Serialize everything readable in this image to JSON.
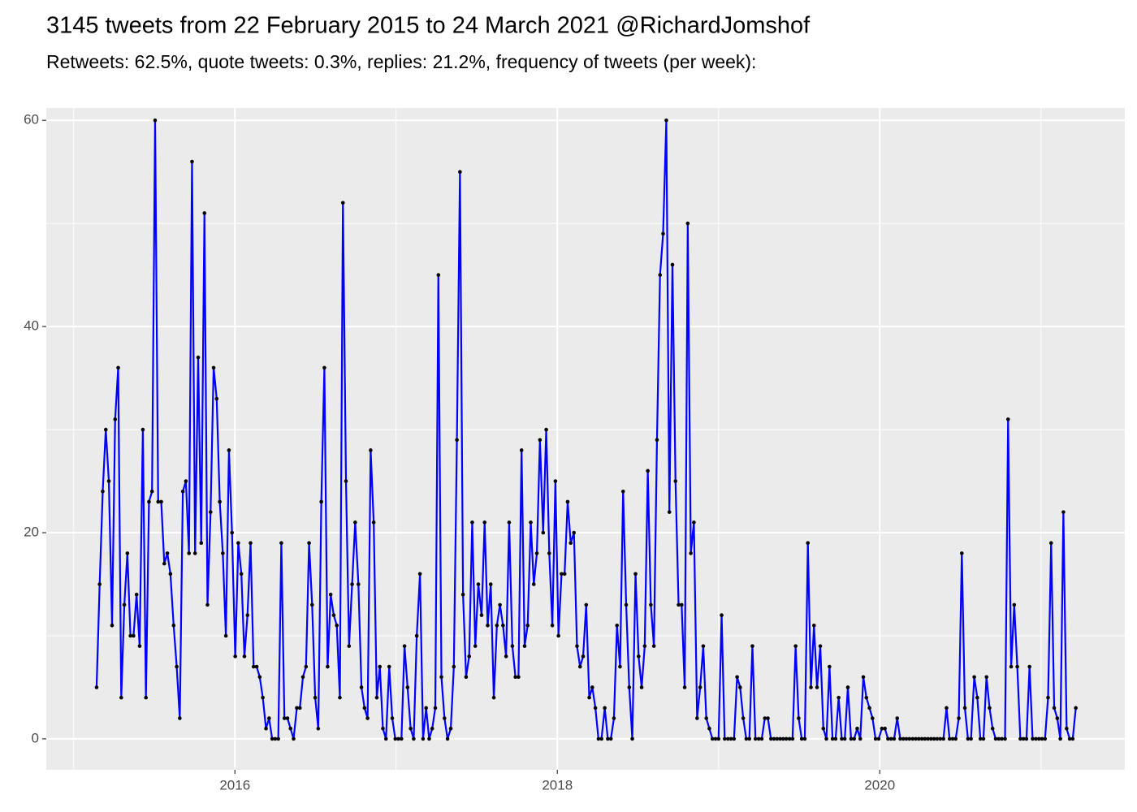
{
  "chart_data": {
    "type": "line",
    "title": "3145 tweets from 22 February 2015 to 24 March 2021 @RichardJomshof",
    "subtitle": "Retweets: 62.5%, quote tweets: 0.3%, replies: 21.2%, frequency of tweets (per week):",
    "x": [
      2015.142,
      2015.161,
      2015.18,
      2015.199,
      2015.218,
      2015.238,
      2015.257,
      2015.276,
      2015.295,
      2015.314,
      2015.333,
      2015.352,
      2015.371,
      2015.39,
      2015.409,
      2015.429,
      2015.448,
      2015.467,
      2015.486,
      2015.505,
      2015.524,
      2015.543,
      2015.562,
      2015.581,
      2015.6,
      2015.62,
      2015.639,
      2015.658,
      2015.677,
      2015.696,
      2015.715,
      2015.734,
      2015.753,
      2015.772,
      2015.791,
      2015.811,
      2015.83,
      2015.849,
      2015.868,
      2015.887,
      2015.906,
      2015.925,
      2015.944,
      2015.963,
      2015.982,
      2016.002,
      2016.021,
      2016.04,
      2016.059,
      2016.078,
      2016.097,
      2016.116,
      2016.135,
      2016.154,
      2016.173,
      2016.193,
      2016.212,
      2016.231,
      2016.25,
      2016.269,
      2016.288,
      2016.307,
      2016.326,
      2016.345,
      2016.364,
      2016.384,
      2016.403,
      2016.422,
      2016.441,
      2016.46,
      2016.479,
      2016.498,
      2016.517,
      2016.536,
      2016.555,
      2016.575,
      2016.594,
      2016.613,
      2016.632,
      2016.651,
      2016.67,
      2016.689,
      2016.708,
      2016.727,
      2016.746,
      2016.766,
      2016.785,
      2016.804,
      2016.823,
      2016.842,
      2016.861,
      2016.88,
      2016.899,
      2016.918,
      2016.937,
      2016.957,
      2016.976,
      2016.995,
      2017.014,
      2017.033,
      2017.052,
      2017.071,
      2017.09,
      2017.109,
      2017.128,
      2017.148,
      2017.167,
      2017.186,
      2017.205,
      2017.224,
      2017.243,
      2017.262,
      2017.281,
      2017.3,
      2017.319,
      2017.339,
      2017.358,
      2017.377,
      2017.396,
      2017.415,
      2017.434,
      2017.453,
      2017.472,
      2017.491,
      2017.51,
      2017.53,
      2017.549,
      2017.568,
      2017.587,
      2017.606,
      2017.625,
      2017.644,
      2017.663,
      2017.682,
      2017.701,
      2017.721,
      2017.74,
      2017.759,
      2017.778,
      2017.797,
      2017.816,
      2017.835,
      2017.854,
      2017.873,
      2017.892,
      2017.912,
      2017.931,
      2017.95,
      2017.969,
      2017.988,
      2018.007,
      2018.026,
      2018.045,
      2018.064,
      2018.083,
      2018.103,
      2018.122,
      2018.141,
      2018.16,
      2018.179,
      2018.198,
      2018.217,
      2018.236,
      2018.255,
      2018.274,
      2018.294,
      2018.313,
      2018.332,
      2018.351,
      2018.37,
      2018.389,
      2018.408,
      2018.427,
      2018.446,
      2018.465,
      2018.485,
      2018.504,
      2018.523,
      2018.542,
      2018.561,
      2018.58,
      2018.599,
      2018.618,
      2018.637,
      2018.656,
      2018.676,
      2018.695,
      2018.714,
      2018.733,
      2018.752,
      2018.771,
      2018.79,
      2018.809,
      2018.828,
      2018.847,
      2018.867,
      2018.886,
      2018.905,
      2018.924,
      2018.943,
      2018.962,
      2018.981,
      2019.0,
      2019.019,
      2019.038,
      2019.058,
      2019.077,
      2019.096,
      2019.115,
      2019.134,
      2019.153,
      2019.172,
      2019.191,
      2019.21,
      2019.229,
      2019.249,
      2019.268,
      2019.287,
      2019.306,
      2019.325,
      2019.344,
      2019.363,
      2019.382,
      2019.401,
      2019.42,
      2019.44,
      2019.459,
      2019.478,
      2019.497,
      2019.516,
      2019.535,
      2019.554,
      2019.573,
      2019.592,
      2019.611,
      2019.631,
      2019.65,
      2019.669,
      2019.688,
      2019.707,
      2019.726,
      2019.745,
      2019.764,
      2019.783,
      2019.802,
      2019.822,
      2019.841,
      2019.86,
      2019.879,
      2019.898,
      2019.917,
      2019.936,
      2019.955,
      2019.974,
      2019.993,
      2020.013,
      2020.032,
      2020.051,
      2020.07,
      2020.089,
      2020.108,
      2020.127,
      2020.146,
      2020.165,
      2020.184,
      2020.204,
      2020.223,
      2020.242,
      2020.261,
      2020.28,
      2020.299,
      2020.318,
      2020.337,
      2020.356,
      2020.375,
      2020.395,
      2020.414,
      2020.433,
      2020.452,
      2020.471,
      2020.49,
      2020.509,
      2020.528,
      2020.547,
      2020.566,
      2020.586,
      2020.605,
      2020.624,
      2020.643,
      2020.662,
      2020.681,
      2020.7,
      2020.719,
      2020.738,
      2020.757,
      2020.777,
      2020.796,
      2020.815,
      2020.834,
      2020.853,
      2020.872,
      2020.891,
      2020.91,
      2020.929,
      2020.948,
      2020.968,
      2020.987,
      2021.006,
      2021.025,
      2021.044,
      2021.063,
      2021.082,
      2021.101,
      2021.12,
      2021.139,
      2021.159,
      2021.178,
      2021.197,
      2021.216
    ],
    "series": [
      {
        "color": "#0000ff",
        "point_color": "#000000",
        "values": [
          5,
          15,
          24,
          30,
          25,
          11,
          31,
          36,
          4,
          13,
          18,
          10,
          10,
          14,
          9,
          30,
          4,
          23,
          24,
          60,
          23,
          23,
          17,
          18,
          16,
          11,
          7,
          2,
          24,
          25,
          18,
          56,
          18,
          37,
          19,
          51,
          13,
          22,
          36,
          33,
          23,
          18,
          10,
          28,
          20,
          8,
          19,
          16,
          8,
          12,
          19,
          7,
          7,
          6,
          4,
          1,
          2,
          0,
          0,
          0,
          19,
          2,
          2,
          1,
          0,
          3,
          3,
          6,
          7,
          19,
          13,
          4,
          1,
          23,
          36,
          7,
          14,
          12,
          11,
          4,
          52,
          25,
          9,
          15,
          21,
          15,
          5,
          3,
          2,
          28,
          21,
          4,
          7,
          1,
          0,
          7,
          2,
          0,
          0,
          0,
          9,
          5,
          1,
          0,
          10,
          16,
          0,
          3,
          0,
          1,
          3,
          45,
          6,
          2,
          0,
          1,
          7,
          29,
          55,
          14,
          6,
          8,
          21,
          9,
          15,
          12,
          21,
          11,
          15,
          4,
          11,
          13,
          11,
          8,
          21,
          9,
          6,
          6,
          28,
          9,
          11,
          21,
          15,
          18,
          29,
          20,
          30,
          18,
          11,
          25,
          10,
          16,
          16,
          23,
          19,
          20,
          9,
          7,
          8,
          13,
          4,
          5,
          3,
          0,
          0,
          3,
          0,
          0,
          2,
          11,
          7,
          24,
          13,
          5,
          0,
          16,
          8,
          5,
          9,
          26,
          13,
          9,
          29,
          45,
          49,
          60,
          22,
          46,
          25,
          13,
          13,
          5,
          50,
          18,
          21,
          2,
          5,
          9,
          2,
          1,
          0,
          0,
          0,
          12,
          0,
          0,
          0,
          0,
          6,
          5,
          2,
          0,
          0,
          9,
          0,
          0,
          0,
          2,
          2,
          0,
          0,
          0,
          0,
          0,
          0,
          0,
          0,
          9,
          2,
          0,
          0,
          19,
          5,
          11,
          5,
          9,
          1,
          0,
          7,
          0,
          0,
          4,
          0,
          0,
          5,
          0,
          0,
          1,
          0,
          6,
          4,
          3,
          2,
          0,
          0,
          1,
          1,
          0,
          0,
          0,
          2,
          0,
          0,
          0,
          0,
          0,
          0,
          0,
          0,
          0,
          0,
          0,
          0,
          0,
          0,
          0,
          3,
          0,
          0,
          0,
          2,
          18,
          3,
          0,
          0,
          6,
          4,
          0,
          0,
          6,
          3,
          1,
          0,
          0,
          0,
          0,
          31,
          7,
          13,
          7,
          0,
          0,
          0,
          7,
          0,
          0,
          0,
          0,
          0,
          4,
          19,
          3,
          2,
          0,
          22,
          1,
          0,
          0,
          3
        ]
      }
    ],
    "xlim": [
      2014.83,
      2021.52
    ],
    "xticks": [
      2016,
      2018,
      2020
    ],
    "xminorticks": [
      2015,
      2017,
      2019,
      2021
    ],
    "ylim": [
      -3,
      61.2
    ],
    "yticks": [
      0,
      20,
      40,
      60
    ],
    "yminorticks": [
      10,
      30,
      50
    ],
    "grid": true
  }
}
